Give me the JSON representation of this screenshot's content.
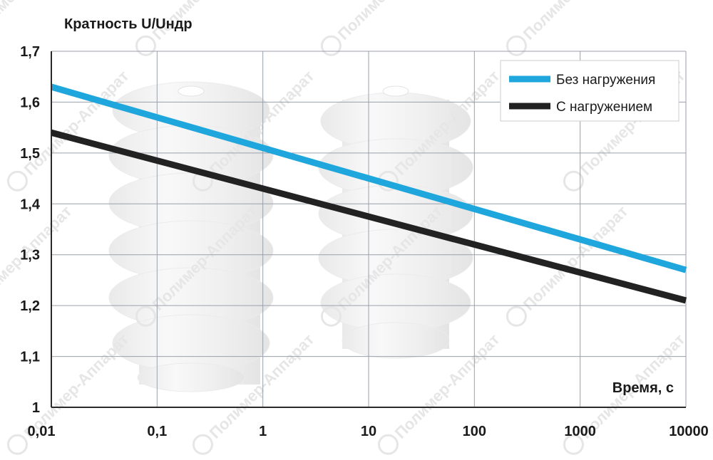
{
  "chart_data": {
    "type": "line",
    "ylabel": "Кратность U/Uндр",
    "xlabel": "Время, с",
    "x_scale": "log",
    "xlim": [
      0.01,
      10000
    ],
    "ylim": [
      1,
      1.7
    ],
    "x_ticks": [
      "0,01",
      "0,1",
      "1",
      "10",
      "100",
      "1000",
      "10000"
    ],
    "y_ticks": [
      "1",
      "1,1",
      "1,2",
      "1,3",
      "1,4",
      "1,5",
      "1,6",
      "1,7"
    ],
    "grid": true,
    "legend_position": "top-right",
    "series": [
      {
        "name": "Без нагружения",
        "color": "#1ea6dd",
        "x": [
          0.01,
          10000
        ],
        "y": [
          1.63,
          1.27
        ]
      },
      {
        "name": "С нагружением",
        "color": "#222222",
        "x": [
          0.01,
          10000
        ],
        "y": [
          1.54,
          1.21
        ]
      }
    ]
  },
  "watermark": {
    "text": "Полимер-Аппарат"
  }
}
